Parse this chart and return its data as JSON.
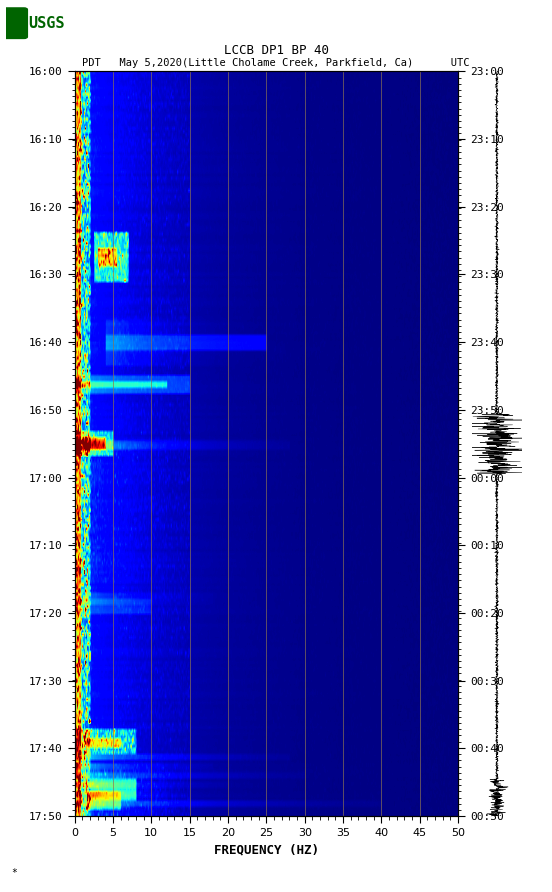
{
  "title_line1": "LCCB DP1 BP 40",
  "title_line2": "PDT   May 5,2020(Little Cholame Creek, Parkfield, Ca)      UTC",
  "xlabel": "FREQUENCY (HZ)",
  "freq_min": 0,
  "freq_max": 50,
  "freq_ticks": [
    0,
    5,
    10,
    15,
    20,
    25,
    30,
    35,
    40,
    45,
    50
  ],
  "time_labels_left": [
    "16:00",
    "16:10",
    "16:20",
    "16:30",
    "16:40",
    "16:50",
    "17:00",
    "17:10",
    "17:20",
    "17:30",
    "17:40",
    "17:50"
  ],
  "time_labels_right": [
    "23:00",
    "23:10",
    "23:20",
    "23:30",
    "23:40",
    "23:50",
    "00:00",
    "00:10",
    "00:20",
    "00:30",
    "00:40",
    "00:50"
  ],
  "n_time_steps": 240,
  "n_freq_steps": 500,
  "colormap": "jet",
  "grid_color": "#8B7355",
  "grid_freq_positions": [
    5,
    10,
    15,
    20,
    25,
    30,
    35,
    40,
    45
  ],
  "fig_width": 5.52,
  "fig_height": 8.92,
  "logo_color": "#006400"
}
